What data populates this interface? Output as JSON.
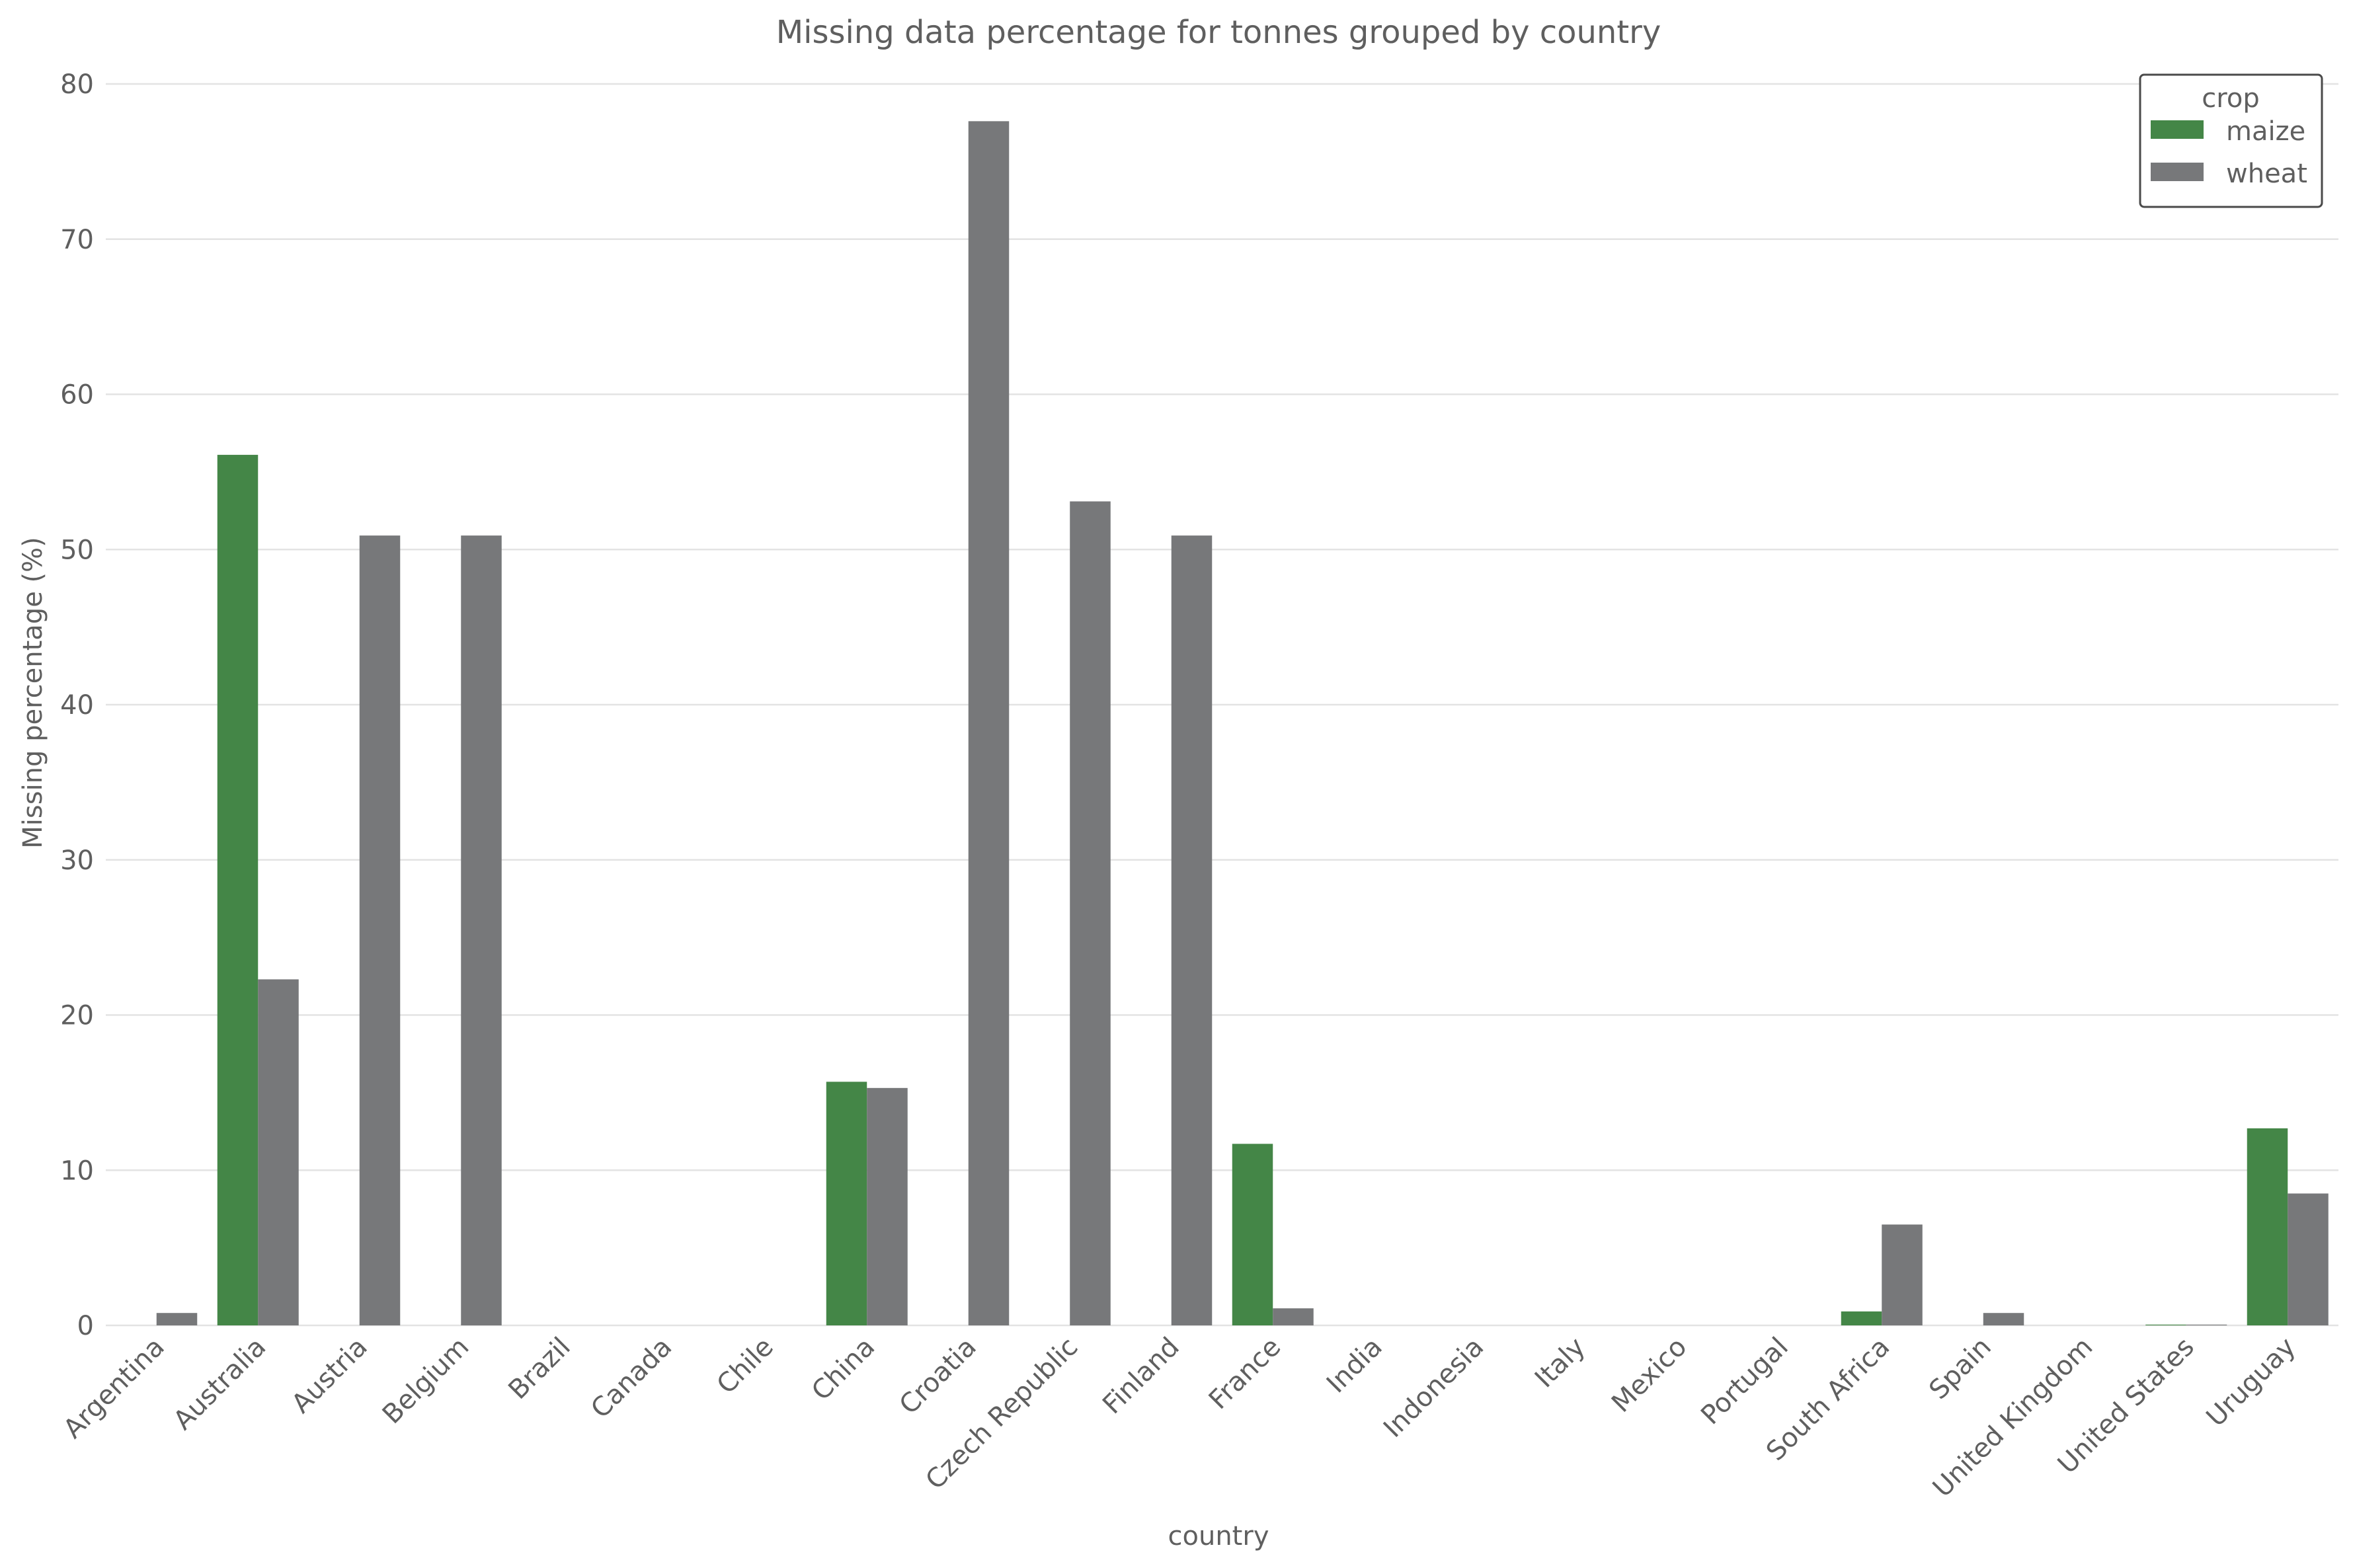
{
  "chart_data": {
    "type": "bar",
    "title": "Missing data percentage for tonnes grouped by country",
    "xlabel": "country",
    "ylabel": "Missing percentage (%)",
    "ylim": [
      0,
      80
    ],
    "yticks": [
      0,
      10,
      20,
      30,
      40,
      50,
      60,
      70,
      80
    ],
    "grid": true,
    "legend": {
      "title": "crop",
      "placement": "top-right"
    },
    "categories": [
      "Argentina",
      "Australia",
      "Austria",
      "Belgium",
      "Brazil",
      "Canada",
      "Chile",
      "China",
      "Croatia",
      "Czech Republic",
      "Finland",
      "France",
      "India",
      "Indonesia",
      "Italy",
      "Mexico",
      "Portugal",
      "South Africa",
      "Spain",
      "United Kingdom",
      "United States",
      "Uruguay"
    ],
    "series": [
      {
        "name": "maize",
        "color": "#448647",
        "values": [
          0,
          56.1,
          0,
          0,
          0,
          0,
          0,
          15.7,
          0,
          0,
          0,
          11.7,
          0,
          0,
          0,
          0,
          0,
          0.9,
          0,
          0,
          0.05,
          12.7
        ]
      },
      {
        "name": "wheat",
        "color": "#77787a",
        "values": [
          0.8,
          22.3,
          50.9,
          50.9,
          0,
          0,
          0,
          15.3,
          77.6,
          53.1,
          50.9,
          1.1,
          0,
          0,
          0,
          0,
          0,
          6.5,
          0.8,
          0,
          0.05,
          8.5
        ]
      }
    ]
  }
}
